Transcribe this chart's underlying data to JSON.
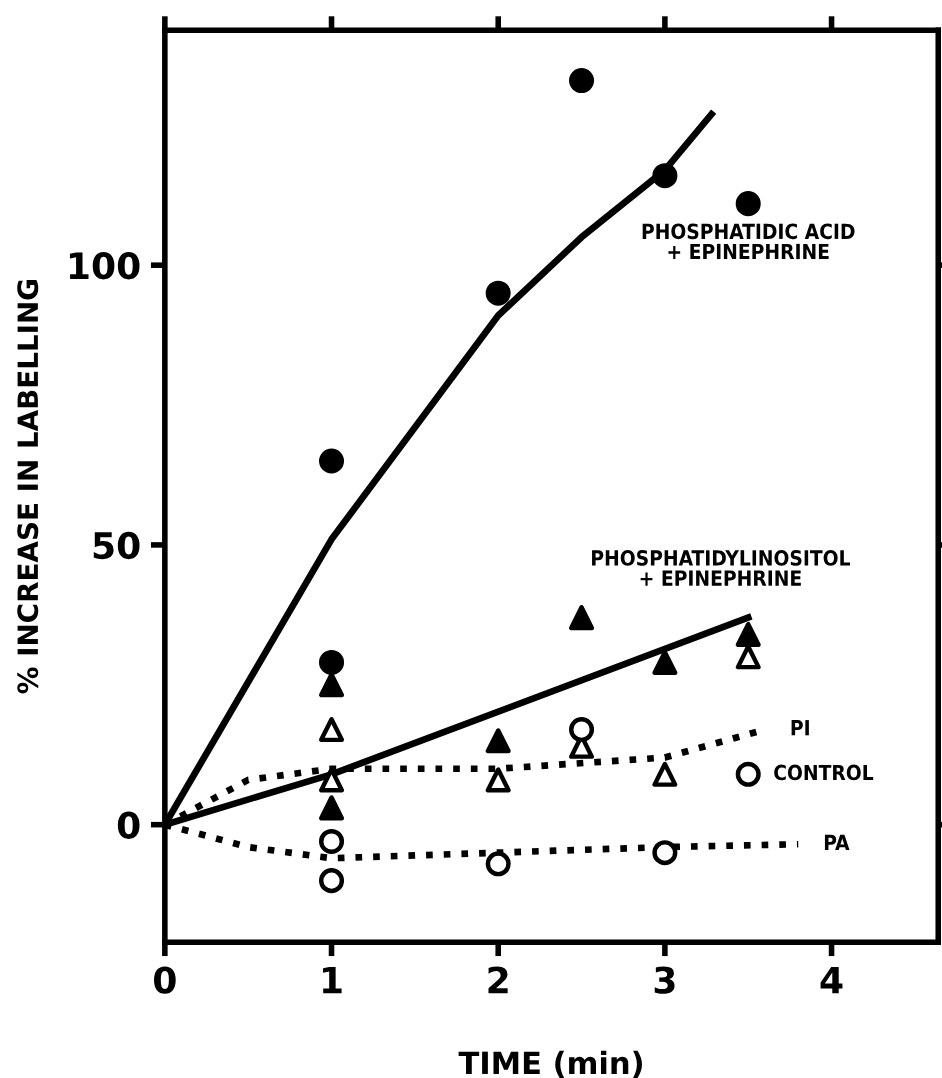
{
  "chart_data": {
    "type": "scatter",
    "xlabel": "TIME (min)",
    "ylabel": "% INCREASE IN LABELLING",
    "xlim": [
      0,
      4.64
    ],
    "ylim": [
      -21,
      142
    ],
    "xticks": [
      0,
      1,
      2,
      3,
      4
    ],
    "yticks": [
      0,
      50,
      100
    ],
    "grid": false,
    "legend": false,
    "series": [
      {
        "name": "PHOSPHATIDIC ACID\n+ EPINEPHRINE",
        "marker": "circle",
        "color": "#000000",
        "x": [
          1,
          1,
          2,
          2.5,
          3,
          3.5
        ],
        "values": [
          65,
          29,
          95,
          133,
          116,
          111
        ]
      },
      {
        "type": "line",
        "line_style": "solid",
        "color": "#000000",
        "x": [
          0,
          1,
          2,
          2.5,
          3,
          3.28
        ],
        "values": [
          0,
          51,
          91,
          105,
          117,
          127
        ]
      },
      {
        "name": "PHOSPHATIDYLINOSITOL\n+ EPINEPHRINE",
        "marker": "triangle",
        "color": "#000000",
        "x": [
          1,
          1,
          2,
          2.5,
          3,
          3.5
        ],
        "values": [
          25,
          3,
          15,
          37,
          29,
          34
        ]
      },
      {
        "type": "line",
        "line_style": "solid",
        "color": "#000000",
        "x": [
          0,
          1,
          3.5
        ],
        "values": [
          0,
          9,
          37
        ]
      },
      {
        "marker": "triangle",
        "color": "#ffffff",
        "x": [
          1,
          1,
          2,
          2.5,
          3,
          3.5
        ],
        "values": [
          17,
          8,
          8,
          14,
          9,
          30
        ]
      },
      {
        "name": "PI",
        "type": "line",
        "line_style": "dotted",
        "color": "#000000",
        "x": [
          0,
          0.5,
          1,
          2,
          3,
          3.6
        ],
        "values": [
          0,
          8,
          10,
          10,
          12,
          17
        ]
      },
      {
        "name": "CONTROL",
        "marker": "circle",
        "color": "#ffffff",
        "x": [
          1,
          1,
          2,
          2.5,
          3,
          3.5
        ],
        "values": [
          -3,
          -10,
          -7,
          17,
          -5,
          9
        ]
      },
      {
        "name": "PA",
        "type": "line",
        "line_style": "dotted",
        "color": "#000000",
        "x": [
          0,
          0.5,
          1,
          2,
          3,
          3.8
        ],
        "values": [
          0,
          -4,
          -6,
          -5,
          -4,
          -3.5
        ]
      }
    ]
  }
}
